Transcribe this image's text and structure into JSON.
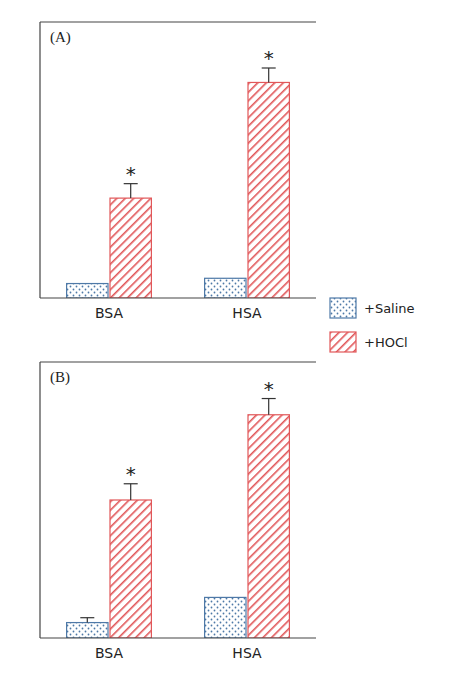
{
  "chart_data": [
    {
      "type": "bar",
      "title": "(A)",
      "categories": [
        "BSA",
        "HSA"
      ],
      "series": [
        {
          "name": "+Saline",
          "color": "#4e79a7",
          "values": [
            0.055,
            0.075
          ]
        },
        {
          "name": "+HOCl",
          "color": "#e15759",
          "values": [
            0.38,
            0.82
          ],
          "errors": [
            0.055,
            0.055
          ]
        }
      ],
      "ylim": [
        0,
        1.05
      ],
      "tick_labels": "x",
      "legend": "right",
      "annotations": [
        {
          "text": "*",
          "category": "BSA",
          "series": "+HOCl"
        },
        {
          "text": "*",
          "category": "HSA",
          "series": "+HOCl"
        }
      ]
    },
    {
      "type": "bar",
      "title": "(B)",
      "categories": [
        "BSA",
        "HSA"
      ],
      "series": [
        {
          "name": "+Saline",
          "color": "#4e79a7",
          "values": [
            0.038,
            0.1
          ],
          "errors": [
            0.012,
            null
          ]
        },
        {
          "name": "+HOCl",
          "color": "#e15759",
          "values": [
            0.34,
            0.55
          ],
          "errors": [
            0.04,
            0.04
          ]
        }
      ],
      "ylim": [
        0,
        0.68
      ],
      "tick_labels": "x",
      "annotations": [
        {
          "text": "*",
          "category": "BSA",
          "series": "+HOCl"
        },
        {
          "text": "*",
          "category": "HSA",
          "series": "+HOCl"
        }
      ]
    }
  ]
}
